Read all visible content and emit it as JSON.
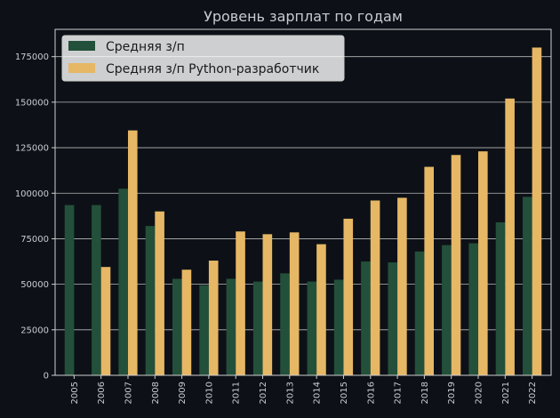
{
  "chart_data": {
    "type": "bar",
    "title": "Уровень зарплат по годам",
    "xlabel": "",
    "ylabel": "",
    "ylim": [
      0,
      190000
    ],
    "yticks": [
      0,
      25000,
      50000,
      75000,
      100000,
      125000,
      150000,
      175000
    ],
    "grid": true,
    "legend_position": "top-left",
    "categories": [
      "2005",
      "2006",
      "2007",
      "2008",
      "2009",
      "2010",
      "2011",
      "2012",
      "2013",
      "2014",
      "2015",
      "2016",
      "2017",
      "2018",
      "2019",
      "2020",
      "2021",
      "2022"
    ],
    "series": [
      {
        "name": "Средняя з/п",
        "color": "#23503a",
        "values": [
          93500,
          93500,
          102500,
          82000,
          53000,
          49500,
          53000,
          51500,
          56000,
          51500,
          52500,
          62500,
          62000,
          68000,
          71500,
          72500,
          84000,
          98000
        ]
      },
      {
        "name": "Средняя з/п Python-разработчик",
        "color": "#e6b765",
        "values": [
          0,
          59500,
          134500,
          90000,
          58000,
          63000,
          79000,
          77500,
          78500,
          72000,
          86000,
          96000,
          97500,
          114500,
          121000,
          123000,
          152000,
          180000
        ]
      }
    ]
  }
}
